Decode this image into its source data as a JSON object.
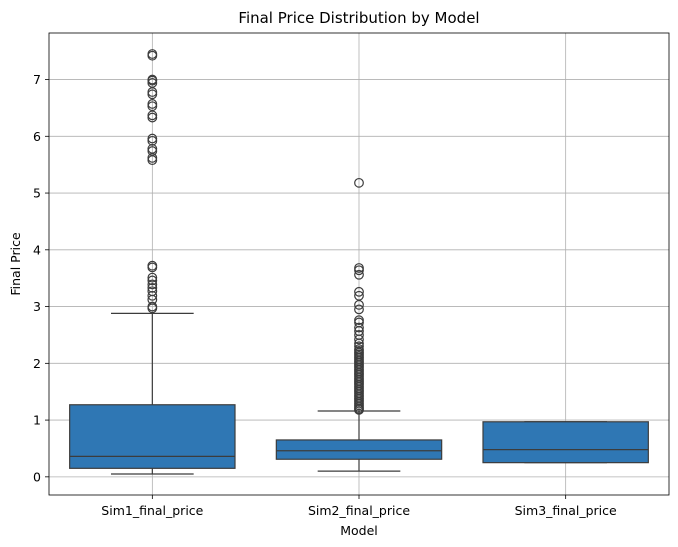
{
  "chart_data": {
    "type": "box",
    "title": "Final Price Distribution by Model",
    "xlabel": "Model",
    "ylabel": "Final Price",
    "ylim": [
      -0.32,
      7.82
    ],
    "yticks": [
      0,
      1,
      2,
      3,
      4,
      5,
      6,
      7
    ],
    "ytick_labels": [
      "0",
      "1",
      "2",
      "3",
      "4",
      "5",
      "6",
      "7"
    ],
    "grid": true,
    "box_color": "#2f77b4",
    "edge_color": "#3c3c3c",
    "categories": [
      "Sim1_final_price",
      "Sim2_final_price",
      "Sim3_final_price"
    ],
    "boxes": [
      {
        "category": "Sim1_final_price",
        "whisker_low": 0.05,
        "q1": 0.15,
        "median": 0.36,
        "q3": 1.27,
        "whisker_high": 2.88,
        "outliers": [
          2.97,
          3.0,
          3.12,
          3.19,
          3.27,
          3.33,
          3.39,
          3.46,
          3.51,
          3.69,
          3.72,
          5.58,
          5.62,
          5.74,
          5.78,
          5.92,
          5.96,
          6.33,
          6.37,
          6.53,
          6.57,
          6.74,
          6.78,
          6.94,
          6.98,
          7.0,
          7.42,
          7.45
        ]
      },
      {
        "category": "Sim2_final_price",
        "whisker_low": 0.1,
        "q1": 0.31,
        "median": 0.46,
        "q3": 0.65,
        "whisker_high": 1.16,
        "outliers": [
          1.18,
          1.2,
          1.23,
          1.26,
          1.29,
          1.32,
          1.35,
          1.38,
          1.41,
          1.44,
          1.47,
          1.5,
          1.53,
          1.56,
          1.59,
          1.62,
          1.65,
          1.68,
          1.71,
          1.74,
          1.77,
          1.8,
          1.83,
          1.86,
          1.89,
          1.92,
          1.95,
          1.98,
          2.01,
          2.04,
          2.07,
          2.1,
          2.13,
          2.16,
          2.19,
          2.22,
          2.25,
          2.3,
          2.35,
          2.42,
          2.5,
          2.57,
          2.63,
          2.72,
          2.76,
          2.95,
          3.03,
          3.19,
          3.26,
          3.56,
          3.64,
          3.68,
          5.18
        ]
      },
      {
        "category": "Sim3_final_price",
        "whisker_low": 0.25,
        "q1": 0.25,
        "median": 0.48,
        "q3": 0.97,
        "whisker_high": 0.97,
        "outliers": []
      }
    ]
  }
}
